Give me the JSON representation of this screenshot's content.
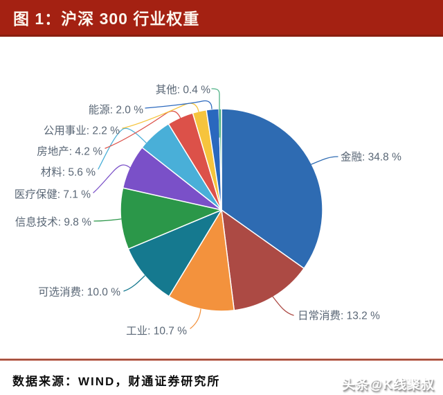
{
  "header": {
    "title": "图 1：沪深 300 行业权重"
  },
  "chart_data": {
    "type": "pie",
    "title": "沪深 300 行业权重",
    "unit": "%",
    "legend_position": "none",
    "label_style": "outside-with-leader-lines",
    "start_angle": "12-o-clock-clockwise",
    "categories": [
      "金融",
      "日常消费",
      "工业",
      "可选消费",
      "信息技术",
      "医疗保健",
      "材料",
      "房地产",
      "公用事业",
      "能源",
      "其他"
    ],
    "values": [
      34.8,
      13.2,
      10.7,
      10.0,
      9.8,
      7.1,
      5.6,
      4.2,
      2.2,
      2.0,
      0.4
    ],
    "labels": [
      "金融: 34.8 %",
      "日常消费: 13.2 %",
      "工业: 10.7 %",
      "可选消费: 10.0 %",
      "信息技术: 9.8 %",
      "医疗保健: 7.1 %",
      "材料: 5.6 %",
      "房地产: 4.2 %",
      "公用事业: 2.2 %",
      "能源: 2.0 %",
      "其他: 0.4 %"
    ],
    "colors": [
      "#2E6BB2",
      "#AC4A44",
      "#F3923D",
      "#15798F",
      "#2B9749",
      "#7A50C8",
      "#49AFD8",
      "#DC5149",
      "#F6C43D",
      "#2A68BE",
      "#4FB286"
    ]
  },
  "footer": {
    "source": "数据来源：WIND，财通证券研究所",
    "watermark": "头条@K线聚叔"
  },
  "style_colors": {
    "title_bar_bg": "#A42112",
    "title_bar_border": "#8A1F10",
    "label_text": "#5A6776",
    "divider": "#A04B38"
  }
}
